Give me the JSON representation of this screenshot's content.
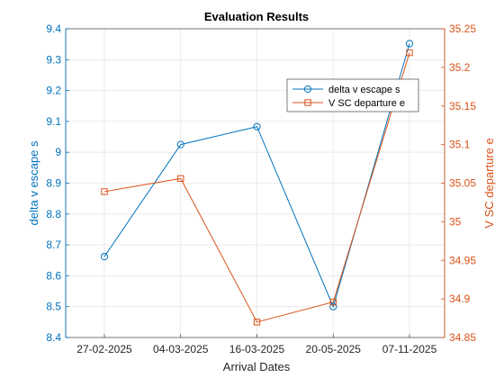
{
  "chart_data": {
    "type": "line",
    "title": "Evaluation Results",
    "xlabel": "Arrival Dates",
    "categories": [
      "27-02-2025",
      "04-03-2025",
      "16-03-2025",
      "20-05-2025",
      "07-11-2025"
    ],
    "grid": true,
    "legend_position": "top-right",
    "left_axis": {
      "label": "delta v escape s",
      "ylim": [
        8.4,
        9.4
      ],
      "ticks": [
        "8.4",
        "8.5",
        "8.6",
        "8.7",
        "8.8",
        "8.9",
        "9",
        "9.1",
        "9.2",
        "9.3",
        "9.4"
      ],
      "color": "#0072bd"
    },
    "right_axis": {
      "label": "V SC departure e",
      "ylim": [
        34.85,
        35.25
      ],
      "ticks": [
        "34.85",
        "34.9",
        "34.95",
        "35",
        "35.05",
        "35.1",
        "35.15",
        "35.2",
        "35.25"
      ],
      "color": "#d95319"
    },
    "series": [
      {
        "name": "delta v escape s",
        "axis": "left",
        "marker": "circle",
        "color": "#0072bd",
        "values": [
          8.662,
          9.025,
          9.083,
          8.5,
          9.352
        ]
      },
      {
        "name": "V SC departure e",
        "axis": "right",
        "marker": "square",
        "color": "#d95319",
        "values": [
          35.039,
          35.056,
          34.87,
          34.896,
          35.219
        ]
      }
    ]
  }
}
